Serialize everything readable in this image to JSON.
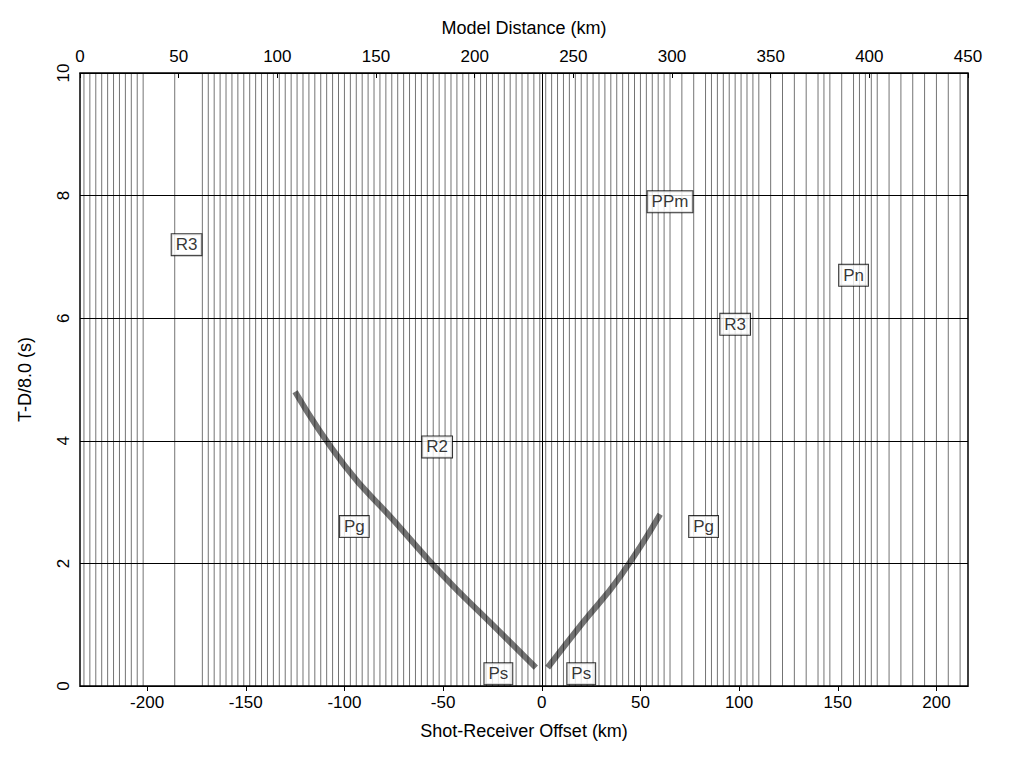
{
  "chart_data": {
    "type": "section",
    "x_label": "Shot-Receiver Offset (km)",
    "x2_label": "Model Distance (km)",
    "y_label": "T-D/8.0 (s)",
    "xlim": [
      -234,
      216
    ],
    "xticks": [
      -200,
      -150,
      -100,
      -50,
      0,
      50,
      100,
      150,
      200
    ],
    "x2lim": [
      0,
      450
    ],
    "x2ticks": [
      0,
      50,
      100,
      150,
      200,
      250,
      300,
      350,
      400,
      450
    ],
    "ylim": [
      0,
      10
    ],
    "yticks": [
      0,
      2,
      4,
      6,
      8,
      10
    ],
    "grid": true,
    "color": "#000000",
    "traces": [
      -232,
      -229,
      -226,
      -223,
      -220,
      -217,
      -214,
      -211,
      -208,
      -205,
      -202,
      -186,
      -172,
      -169,
      -166,
      -163,
      -160,
      -157,
      -154,
      -151,
      -148,
      -145,
      -142,
      -139,
      -136,
      -133,
      -130,
      -127,
      -124,
      -121,
      -118,
      -115,
      -112,
      -109,
      -106,
      -103,
      -100,
      -97,
      -94,
      -91,
      -88,
      -85,
      -82,
      -79,
      -76,
      -73,
      -70,
      -67,
      -64,
      -61,
      -58,
      -55,
      -52,
      -49,
      -46,
      -43,
      -40,
      -37,
      -34,
      -31,
      -28,
      -25,
      -22,
      -19,
      -16,
      -13,
      -10,
      -7,
      -4,
      -1,
      2,
      5,
      8,
      11,
      14,
      17,
      20,
      23,
      26,
      29,
      32,
      35,
      38,
      41,
      44,
      47,
      50,
      53,
      56,
      59,
      62,
      65,
      71,
      77,
      83,
      86,
      89,
      92,
      95,
      98,
      101,
      104,
      107,
      110,
      116,
      122,
      128,
      134,
      140,
      143,
      146,
      152,
      158,
      161,
      164,
      167,
      170,
      176,
      182,
      188,
      194,
      200,
      206,
      212
    ],
    "arrivals": [
      {
        "x": [
          -3,
          -25,
          -50,
          -75,
          -100,
          -125
        ],
        "y": [
          0.3,
          1.0,
          1.8,
          2.7,
          3.6,
          4.8
        ]
      },
      {
        "x": [
          3,
          20,
          40,
          60
        ],
        "y": [
          0.3,
          1.0,
          1.8,
          2.8
        ]
      }
    ],
    "annotations": [
      {
        "text": "R3",
        "x": -180,
        "y": 7.2
      },
      {
        "text": "R2",
        "x": -53,
        "y": 3.9
      },
      {
        "text": "Pg",
        "x": -95,
        "y": 2.6
      },
      {
        "text": "Pg",
        "x": 82,
        "y": 2.6
      },
      {
        "text": "Ps",
        "x": -22,
        "y": 0.2
      },
      {
        "text": "Ps",
        "x": 20,
        "y": 0.2
      },
      {
        "text": "PPm",
        "x": 65,
        "y": 7.9
      },
      {
        "text": "R3",
        "x": 98,
        "y": 5.9
      },
      {
        "text": "Pn",
        "x": 158,
        "y": 6.7
      }
    ]
  }
}
